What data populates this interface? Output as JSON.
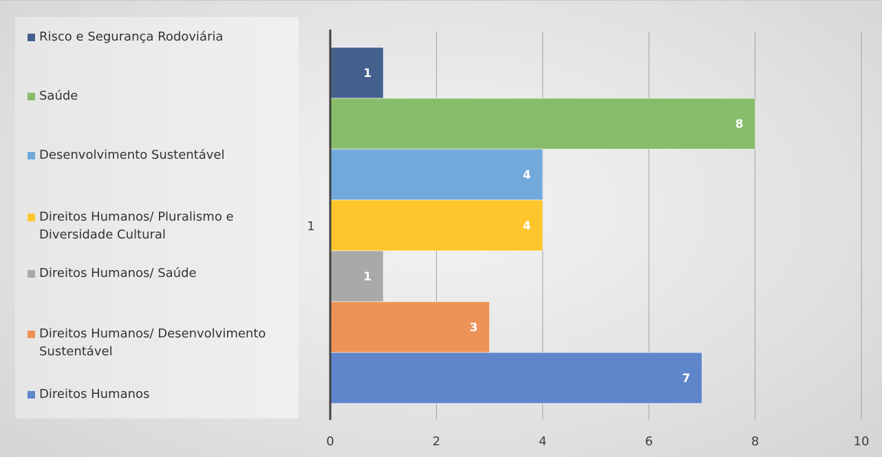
{
  "chart_data": {
    "type": "bar",
    "orientation": "horizontal",
    "category_label": "1",
    "xlim": [
      0,
      10
    ],
    "x_ticks": [
      0,
      2,
      4,
      6,
      8,
      10
    ],
    "grid": true,
    "legend_position": "left",
    "series": [
      {
        "name": "Risco e Segurança Rodoviária",
        "value": 1,
        "color": "#44618d"
      },
      {
        "name": "Saúde",
        "value": 8,
        "color": "#87bd6a"
      },
      {
        "name": "Desenvolvimento Sustentável",
        "value": 4,
        "color": "#72a9dc"
      },
      {
        "name": "Direitos Humanos/ Pluralismo e Diversidade Cultural",
        "value": 4,
        "color": "#fec62c"
      },
      {
        "name": "Direitos Humanos/ Saúde",
        "value": 1,
        "color": "#a9a9a9"
      },
      {
        "name": "Direitos Humanos/ Desenvolvimento Sustentável",
        "value": 3,
        "color": "#ee9358"
      },
      {
        "name": "Direitos Humanos",
        "value": 7,
        "color": "#5f86cb"
      }
    ]
  }
}
